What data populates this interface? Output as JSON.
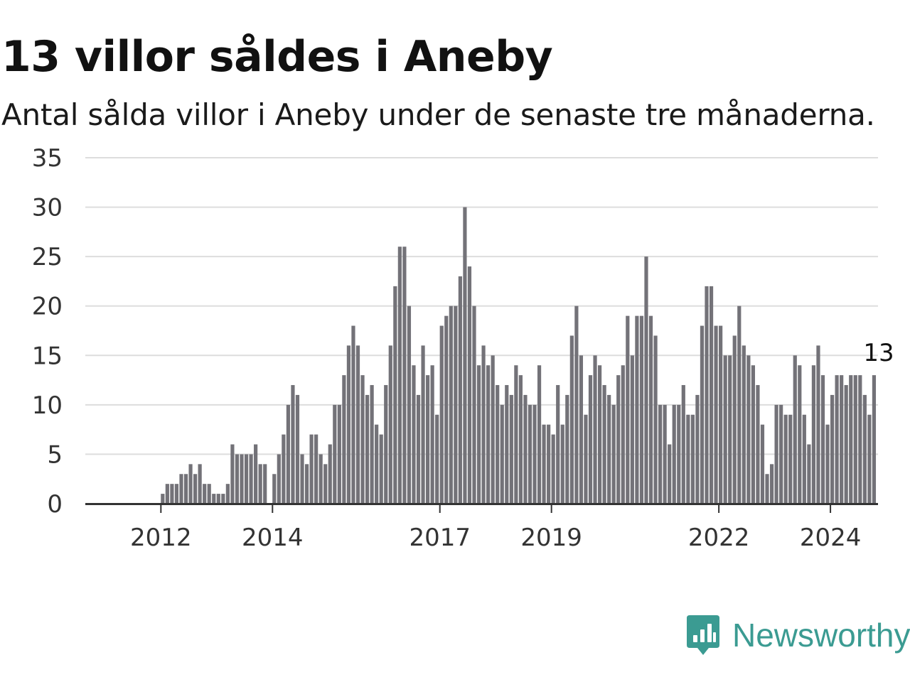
{
  "title": "13 villor såldes i Aneby",
  "subtitle": "Antal sålda villor i Aneby under de senaste tre månaderna.",
  "brand": {
    "name": "Newsworthy",
    "color": "#3b9b92"
  },
  "colors": {
    "bar": "#737278",
    "highlight": "#1aa393",
    "grid": "#dddddd",
    "axis": "#333333"
  },
  "chart_data": {
    "type": "bar",
    "title": "13 villor såldes i Aneby",
    "subtitle": "Antal sålda villor i Aneby under de senaste tre månaderna.",
    "xlabel": "",
    "ylabel": "",
    "start": "2011-05",
    "frequency": "monthly",
    "ylim": [
      0,
      35
    ],
    "yticks": [
      "0",
      "5",
      "10",
      "15",
      "20",
      "25",
      "30",
      "35"
    ],
    "xticks": [
      {
        "label": "2012",
        "date": "2012-01"
      },
      {
        "label": "2014",
        "date": "2014-01"
      },
      {
        "label": "2017",
        "date": "2017-01"
      },
      {
        "label": "2019",
        "date": "2019-01"
      },
      {
        "label": "2022",
        "date": "2022-01"
      },
      {
        "label": "2024",
        "date": "2024-01"
      }
    ],
    "grid": true,
    "highlight": {
      "date": "2024-11",
      "value": 13,
      "label": "13"
    },
    "values": [
      0,
      0,
      0,
      0,
      0,
      0,
      0,
      0,
      1,
      2,
      2,
      2,
      3,
      3,
      4,
      3,
      4,
      2,
      2,
      1,
      1,
      1,
      2,
      6,
      5,
      5,
      5,
      5,
      6,
      4,
      4,
      0,
      3,
      5,
      7,
      10,
      12,
      11,
      5,
      4,
      7,
      7,
      5,
      4,
      6,
      10,
      10,
      13,
      16,
      18,
      16,
      13,
      11,
      12,
      8,
      7,
      12,
      16,
      22,
      26,
      26,
      20,
      14,
      11,
      16,
      13,
      14,
      9,
      18,
      19,
      20,
      20,
      23,
      30,
      24,
      20,
      14,
      16,
      14,
      15,
      12,
      10,
      12,
      11,
      14,
      13,
      11,
      10,
      10,
      14,
      8,
      8,
      7,
      12,
      8,
      11,
      17,
      20,
      15,
      9,
      13,
      15,
      14,
      12,
      11,
      10,
      13,
      14,
      19,
      15,
      19,
      19,
      25,
      19,
      17,
      10,
      10,
      6,
      10,
      10,
      12,
      9,
      9,
      11,
      18,
      22,
      22,
      18,
      18,
      15,
      15,
      17,
      20,
      16,
      15,
      14,
      12,
      8,
      3,
      4,
      10,
      10,
      9,
      9,
      15,
      14,
      9,
      6,
      14,
      16,
      13,
      8,
      11,
      13,
      13,
      12,
      13,
      13,
      13,
      11,
      9,
      13
    ]
  }
}
